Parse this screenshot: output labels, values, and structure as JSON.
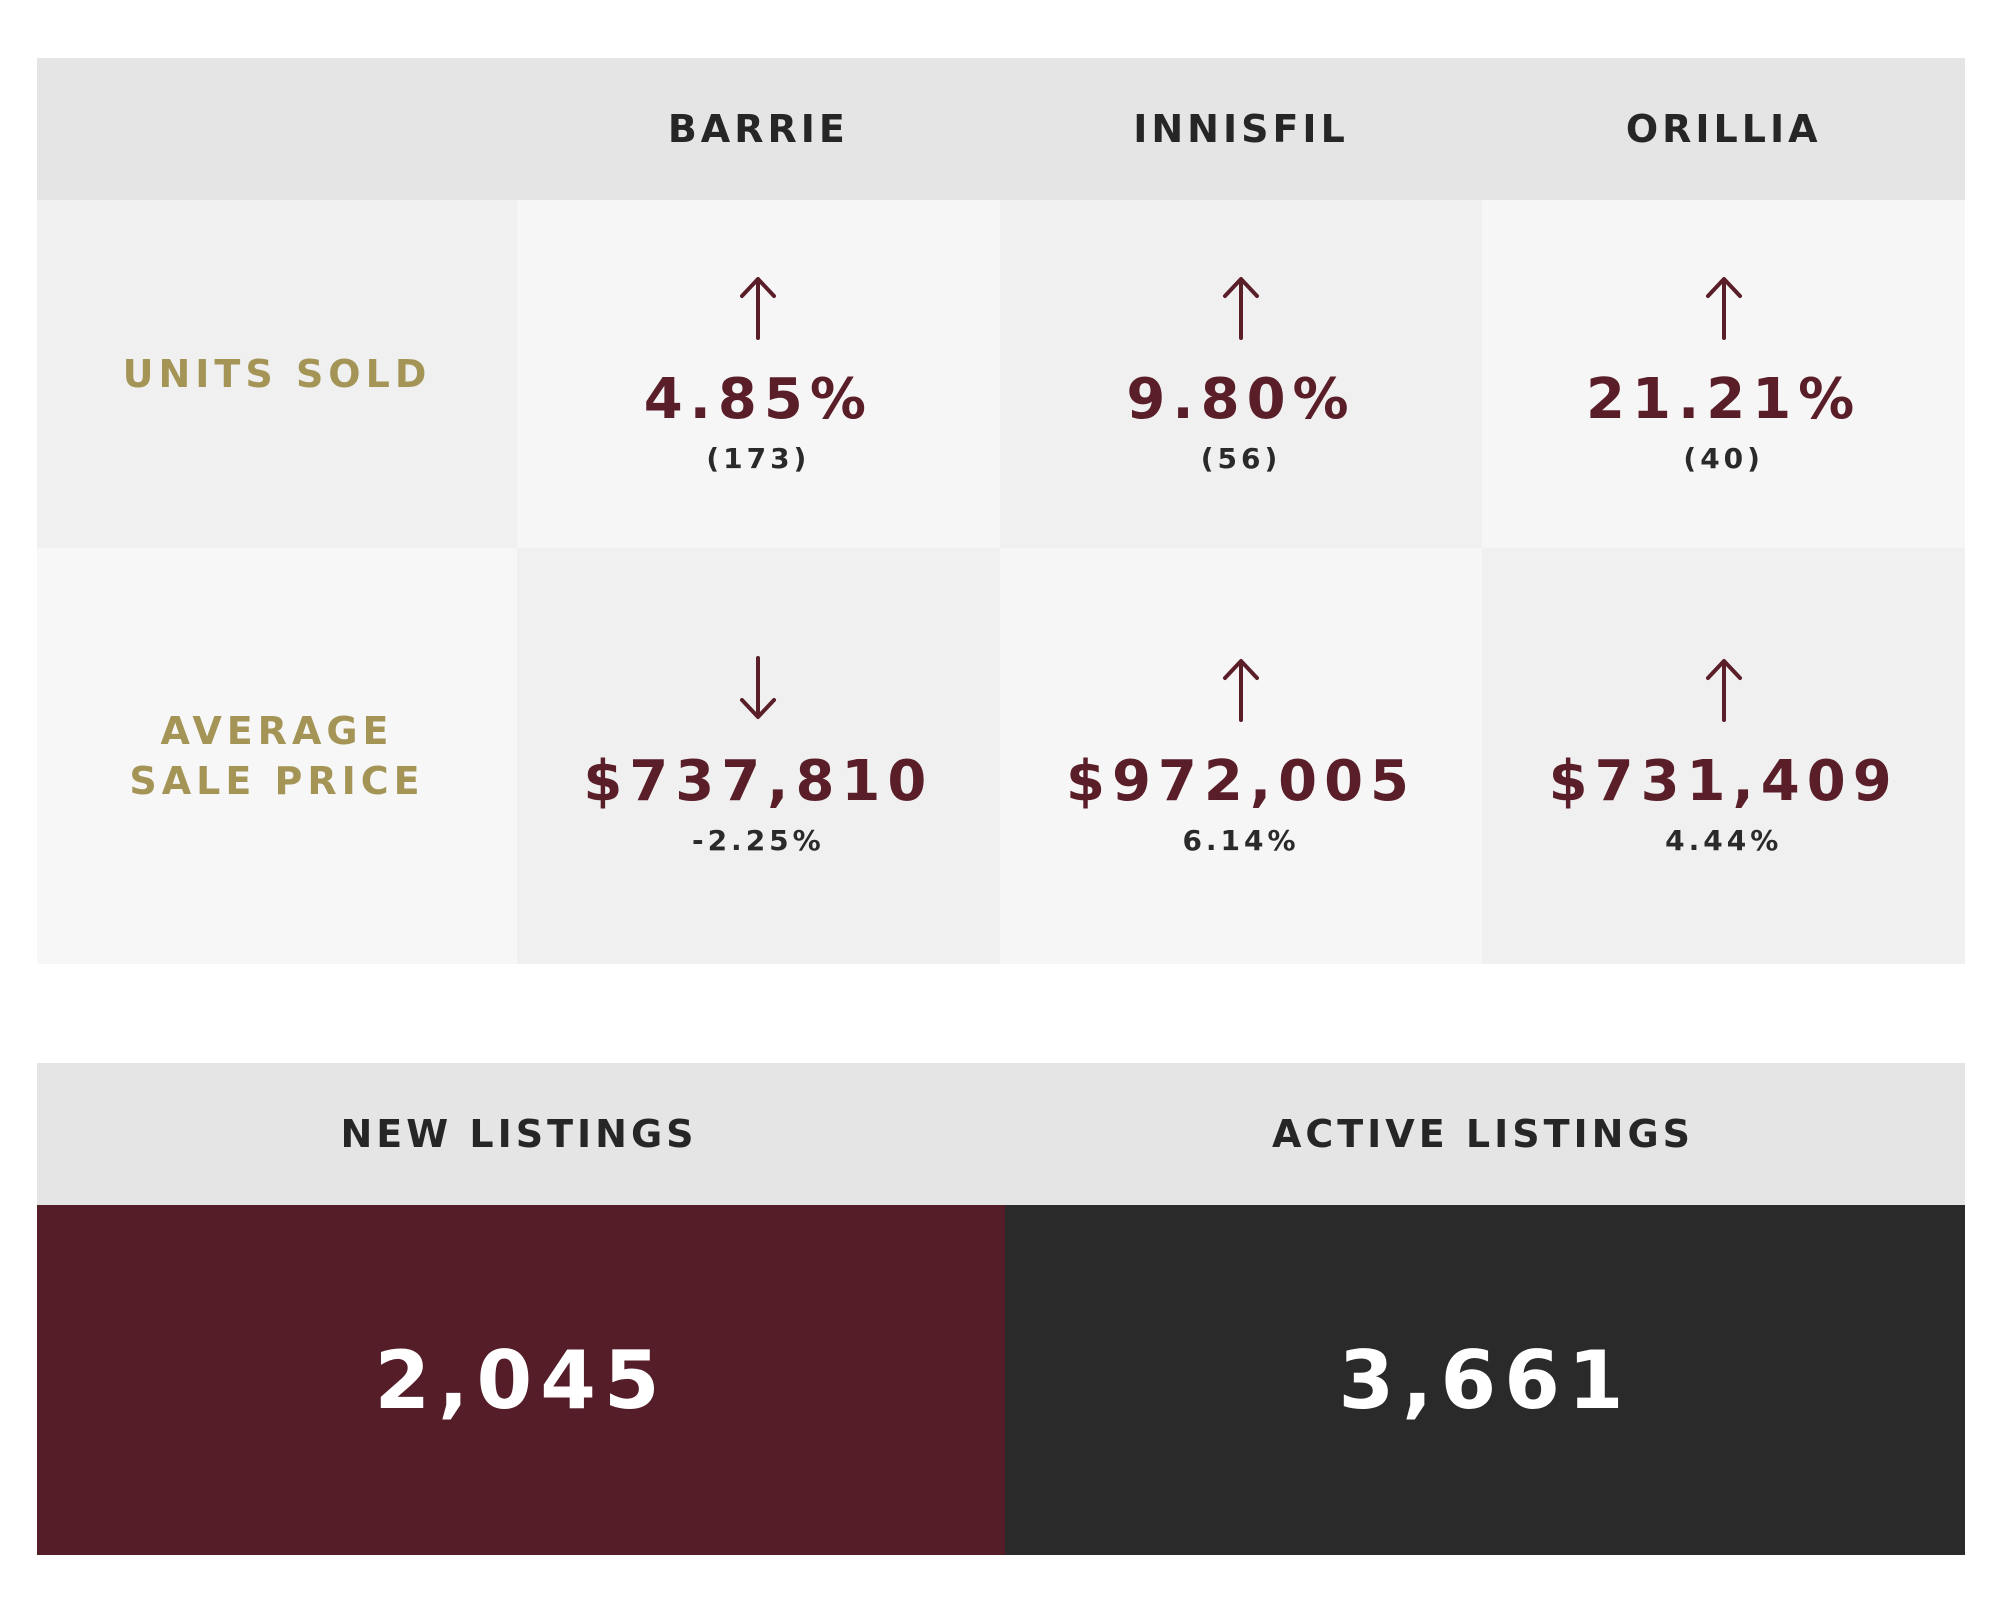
{
  "colors": {
    "accent_burgundy": "#541d28",
    "value_text": "#5a1e29",
    "label_gold": "#a49557",
    "dark_panel": "#2a2a2a",
    "header_gray": "#e5e5e5"
  },
  "cities": [
    "BARRIE",
    "INNISFIL",
    "ORILLIA"
  ],
  "units_sold": {
    "label": "UNITS SOLD",
    "cells": [
      {
        "direction": "up",
        "arrow_icon": "arrow-up-icon",
        "value": "4.85%",
        "sub": "(173)"
      },
      {
        "direction": "up",
        "arrow_icon": "arrow-up-icon",
        "value": "9.80%",
        "sub": "(56)"
      },
      {
        "direction": "up",
        "arrow_icon": "arrow-up-icon",
        "value": "21.21%",
        "sub": "(40)"
      }
    ]
  },
  "average_sale_price": {
    "label_line1": "AVERAGE",
    "label_line2": "SALE PRICE",
    "cells": [
      {
        "direction": "down",
        "arrow_icon": "arrow-down-icon",
        "value": "$737,810",
        "sub": "-2.25%"
      },
      {
        "direction": "up",
        "arrow_icon": "arrow-up-icon",
        "value": "$972,005",
        "sub": "6.14%"
      },
      {
        "direction": "up",
        "arrow_icon": "arrow-up-icon",
        "value": "$731,409",
        "sub": "4.44%"
      }
    ]
  },
  "listings": {
    "new_label": "NEW LISTINGS",
    "new_value": "2,045",
    "active_label": "ACTIVE LISTINGS",
    "active_value": "3,661"
  }
}
